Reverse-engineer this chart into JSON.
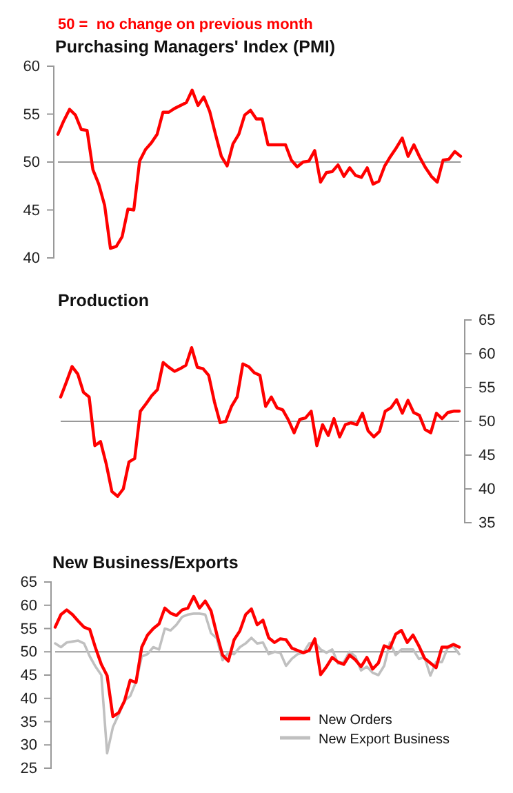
{
  "chart_data": [
    {
      "type": "line",
      "title": "Purchasing Managers' Index (PMI)",
      "annotations": [
        "50 =  no change on previous month"
      ],
      "categories": [
        null,
        null,
        null,
        null,
        null,
        null,
        null,
        null,
        null,
        null,
        null,
        null,
        null,
        null,
        null,
        null,
        null,
        null,
        null,
        null,
        null,
        null,
        null,
        null,
        null,
        null,
        null,
        null,
        null,
        null,
        null,
        null,
        null,
        null,
        null,
        null,
        null,
        null,
        null,
        null,
        null,
        null,
        null,
        null,
        null,
        null,
        null,
        null,
        null,
        null,
        null,
        null,
        null,
        null,
        null,
        null,
        null,
        null,
        null,
        null,
        null,
        null,
        null,
        null,
        null,
        null,
        null,
        null,
        null,
        null
      ],
      "ylim": [
        40,
        60
      ],
      "yticks": [
        40,
        45,
        50,
        55,
        60
      ],
      "line_style": "solid",
      "legend": false,
      "ref_lines": [
        {
          "axis": "y",
          "value": 50,
          "color": "#999999"
        }
      ],
      "series": [
        {
          "color": "#ff0000",
          "values": [
            52.9,
            54.3,
            55.5,
            54.9,
            53.4,
            53.3,
            49.2,
            47.7,
            45.5,
            41.0,
            41.2,
            42.2,
            45.1,
            45.0,
            50.1,
            51.3,
            52.0,
            52.9,
            55.2,
            55.2,
            55.6,
            55.9,
            56.2,
            57.5,
            55.9,
            56.8,
            55.3,
            52.9,
            50.6,
            49.6,
            51.9,
            52.9,
            54.9,
            55.4,
            54.5,
            54.5,
            51.8,
            51.8,
            51.8,
            51.8,
            50.2,
            49.5,
            50.0,
            50.1,
            51.2,
            47.9,
            48.9,
            49.0,
            49.7,
            48.5,
            49.4,
            48.6,
            48.4,
            49.4,
            47.7,
            48.0,
            49.6,
            50.6,
            51.5,
            52.5,
            50.6,
            51.8,
            50.5,
            49.4,
            48.5,
            47.9,
            50.2,
            50.3,
            51.1,
            50.6
          ]
        }
      ]
    },
    {
      "type": "line",
      "title": "Production",
      "categories": [
        null,
        null,
        null,
        null,
        null,
        null,
        null,
        null,
        null,
        null,
        null,
        null,
        null,
        null,
        null,
        null,
        null,
        null,
        null,
        null,
        null,
        null,
        null,
        null,
        null,
        null,
        null,
        null,
        null,
        null,
        null,
        null,
        null,
        null,
        null,
        null,
        null,
        null,
        null,
        null,
        null,
        null,
        null,
        null,
        null,
        null,
        null,
        null,
        null,
        null,
        null,
        null,
        null,
        null,
        null,
        null,
        null,
        null,
        null,
        null,
        null,
        null,
        null,
        null,
        null,
        null,
        null,
        null,
        null,
        null,
        null
      ],
      "ylim": [
        35,
        65
      ],
      "yticks": [
        35,
        40,
        45,
        50,
        55,
        60,
        65
      ],
      "line_style": "solid",
      "legend": false,
      "ref_lines": [
        {
          "axis": "y",
          "value": 50,
          "color": "#999999"
        }
      ],
      "series": [
        {
          "color": "#ff0000",
          "values": [
            53.6,
            55.8,
            58.1,
            57.0,
            54.3,
            53.6,
            46.4,
            47.0,
            43.7,
            39.6,
            38.9,
            40.0,
            44.0,
            44.5,
            51.5,
            52.6,
            53.8,
            54.7,
            58.7,
            58.0,
            57.4,
            57.8,
            58.3,
            60.9,
            58.0,
            57.8,
            56.8,
            52.9,
            49.8,
            50.0,
            52.2,
            53.6,
            58.5,
            58.1,
            57.2,
            56.8,
            52.2,
            53.6,
            52.0,
            51.7,
            50.2,
            48.3,
            50.3,
            50.5,
            51.5,
            46.4,
            49.5,
            47.9,
            50.4,
            47.7,
            49.5,
            49.8,
            49.5,
            51.2,
            48.6,
            47.7,
            48.5,
            51.5,
            52.0,
            53.2,
            51.2,
            53.1,
            51.3,
            50.9,
            48.8,
            48.3,
            51.2,
            50.4,
            51.3,
            51.5,
            51.5
          ]
        }
      ]
    },
    {
      "type": "line",
      "title": "New Business/Exports",
      "categories": [
        null,
        null,
        null,
        null,
        null,
        null,
        null,
        null,
        null,
        null,
        null,
        null,
        null,
        null,
        null,
        null,
        null,
        null,
        null,
        null,
        null,
        null,
        null,
        null,
        null,
        null,
        null,
        null,
        null,
        null,
        null,
        null,
        null,
        null,
        null,
        null,
        null,
        null,
        null,
        null,
        null,
        null,
        null,
        null,
        null,
        null,
        null,
        null,
        null,
        null,
        null,
        null,
        null,
        null,
        null,
        null,
        null,
        null,
        null,
        null,
        null,
        null,
        null,
        null,
        null,
        null,
        null,
        null,
        null,
        null,
        null
      ],
      "ylim": [
        25,
        65
      ],
      "yticks": [
        25,
        30,
        35,
        40,
        45,
        50,
        55,
        60,
        65
      ],
      "line_style": "solid",
      "legend": "bottom right",
      "ref_lines": [
        {
          "axis": "y",
          "value": 50,
          "color": "#999999"
        }
      ],
      "series": [
        {
          "name": "New Orders",
          "color": "#ff0000",
          "values": [
            55.3,
            58.0,
            59.0,
            58.0,
            56.6,
            55.3,
            54.8,
            50.8,
            47.3,
            44.9,
            36.1,
            36.9,
            39.4,
            43.9,
            43.4,
            51.0,
            53.6,
            55.0,
            56.0,
            59.4,
            58.3,
            57.8,
            59.0,
            59.4,
            61.9,
            59.4,
            60.9,
            58.8,
            53.8,
            49.3,
            48.0,
            52.6,
            54.5,
            58.0,
            59.2,
            55.8,
            56.8,
            53.0,
            52.0,
            52.8,
            52.6,
            50.8,
            50.3,
            49.8,
            50.3,
            52.8,
            45.1,
            46.8,
            48.8,
            47.8,
            47.3,
            49.3,
            48.3,
            46.8,
            48.8,
            46.3,
            47.6,
            51.3,
            50.8,
            53.8,
            54.6,
            52.0,
            53.6,
            51.3,
            48.6,
            47.6,
            46.6,
            51.0,
            51.0,
            51.6,
            51.0
          ]
        },
        {
          "name": "New Export Business",
          "color": "#c0c0c0",
          "values": [
            51.8,
            51.0,
            52.0,
            52.2,
            52.4,
            51.8,
            49.0,
            46.8,
            45.0,
            28.2,
            33.8,
            36.5,
            39.5,
            40.5,
            43.5,
            49.0,
            49.5,
            51.0,
            50.5,
            55.0,
            54.6,
            55.8,
            57.5,
            58.0,
            58.2,
            58.2,
            58.0,
            54.0,
            52.9,
            48.2,
            49.8,
            49.5,
            51.0,
            51.8,
            53.0,
            51.8,
            52.0,
            49.5,
            50.0,
            49.8,
            47.0,
            48.5,
            49.5,
            49.8,
            51.8,
            52.0,
            50.5,
            49.8,
            50.5,
            47.5,
            47.8,
            50.0,
            49.0,
            46.0,
            46.8,
            45.5,
            45.0,
            47.0,
            52.0,
            49.3,
            50.5,
            50.5,
            50.5,
            48.5,
            48.8,
            44.9,
            47.8,
            47.8,
            50.8,
            51.2,
            49.5
          ]
        }
      ]
    }
  ]
}
